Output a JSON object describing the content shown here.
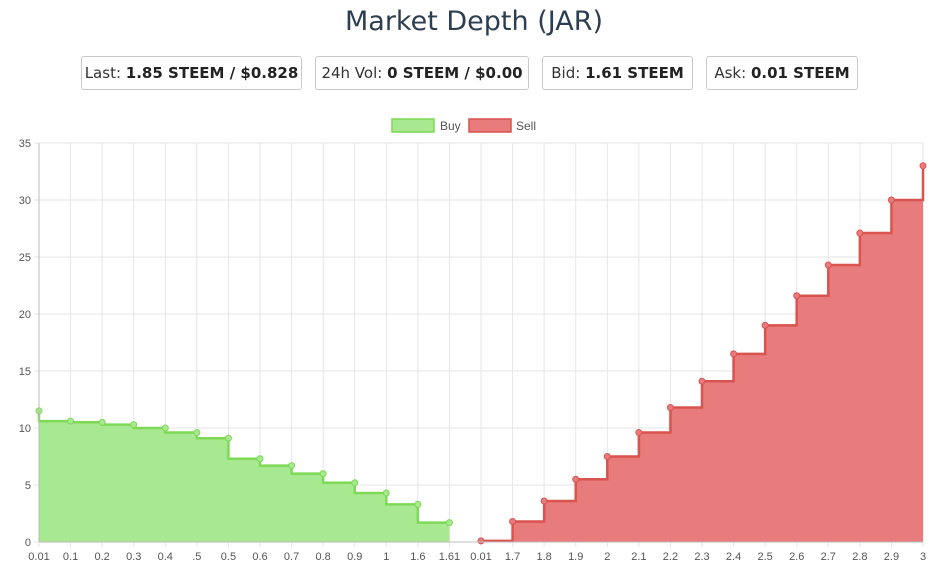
{
  "title": "Market Depth (JAR)",
  "stats": {
    "last_label": "Last:",
    "last_value": "1.85 STEEM / $0.828",
    "vol_label": "24h Vol:",
    "vol_value": "0 STEEM / $0.00",
    "bid_label": "Bid:",
    "bid_value": "1.61 STEEM",
    "ask_label": "Ask:",
    "ask_value": "0.01 STEEM"
  },
  "chart_data": {
    "type": "area",
    "stepped": true,
    "categories": [
      "0.01",
      "0.1",
      "0.2",
      "0.3",
      "0.4",
      ".5",
      "0.5",
      "0.6",
      "0.7",
      "0.8",
      "0.9",
      "1",
      "1.6",
      "1.61",
      "0.01",
      "1.7",
      "1.8",
      "1.9",
      "2",
      "2.1",
      "2.2",
      "2.3",
      "2.4",
      "2.5",
      "2.6",
      "2.7",
      "2.8",
      "2.9",
      "3"
    ],
    "ylim": [
      0,
      35
    ],
    "yticks": [
      0,
      5,
      10,
      15,
      20,
      25,
      30,
      35
    ],
    "grid": true,
    "legend_position": "top-center",
    "series": [
      {
        "name": "Buy",
        "color": "#7ed957",
        "fill": "#a8e890",
        "values": [
          11.5,
          10.6,
          10.5,
          10.3,
          10.0,
          9.6,
          9.1,
          7.3,
          6.7,
          6.0,
          5.2,
          4.3,
          3.3,
          1.7,
          null,
          null,
          null,
          null,
          null,
          null,
          null,
          null,
          null,
          null,
          null,
          null,
          null,
          null,
          null
        ]
      },
      {
        "name": "Sell",
        "color": "#d9534f",
        "fill": "#e87b7b",
        "values": [
          null,
          null,
          null,
          null,
          null,
          null,
          null,
          null,
          null,
          null,
          null,
          null,
          null,
          null,
          0.1,
          1.8,
          3.6,
          5.5,
          7.5,
          9.6,
          11.8,
          14.1,
          16.5,
          19.0,
          21.6,
          24.3,
          27.1,
          30.0,
          33.0
        ]
      }
    ]
  }
}
